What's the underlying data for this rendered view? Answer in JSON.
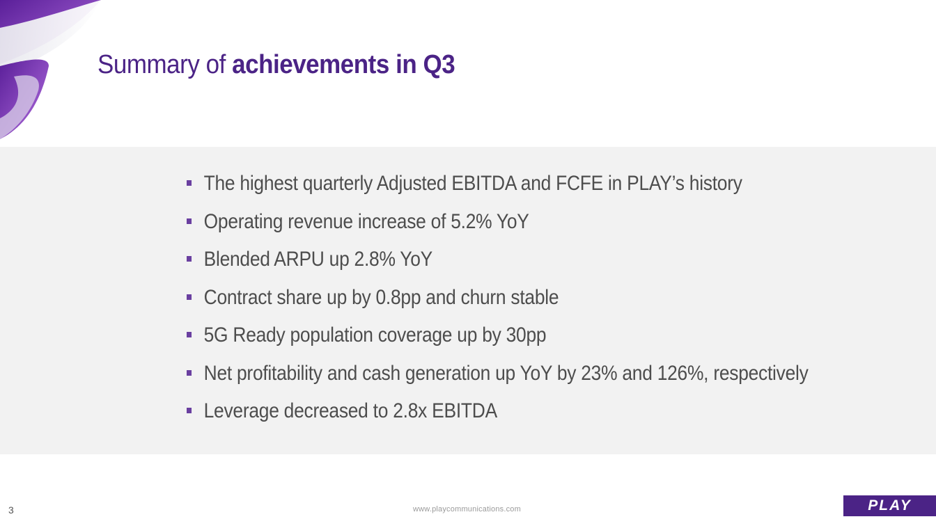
{
  "slide": {
    "title_regular": "Summary of ",
    "title_bold": "achievements in Q3",
    "bullets": [
      "The highest quarterly Adjusted EBITDA and FCFE in PLAY’s history",
      "Operating revenue increase of 5.2% YoY",
      "Blended ARPU up 2.8% YoY",
      "Contract share up by 0.8pp and churn stable",
      "5G Ready population coverage up by 30pp",
      "Net profitability and cash generation up YoY by 23% and 126%, respectively",
      "Leverage decreased to 2.8x EBITDA"
    ]
  },
  "footer": {
    "page_number": "3",
    "url": "www.playcommunications.com",
    "logo_text": "PLAY"
  },
  "colors": {
    "brand_purple": "#4b2386",
    "bullet_marker": "#6a3fa0",
    "body_text": "#4d4d4d",
    "band_background": "#f2f2f2"
  }
}
